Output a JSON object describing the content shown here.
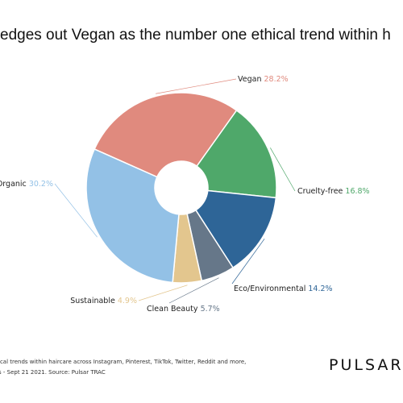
{
  "chart_data": {
    "type": "pie",
    "title": "edges out Vegan as the number one ethical trend within h",
    "donut": true,
    "slices": [
      {
        "label": "Vegan",
        "value": 28.2,
        "value_label": "28.2%",
        "color": "#E08A7E"
      },
      {
        "label": "Cruelty-free",
        "value": 16.8,
        "value_label": "16.8%",
        "color": "#4FA86A"
      },
      {
        "label": "Eco/Environmental",
        "value": 14.2,
        "value_label": "14.2%",
        "color": "#2E6597"
      },
      {
        "label": "Clean Beauty",
        "value": 5.7,
        "value_label": "5.7%",
        "color": "#667789"
      },
      {
        "label": "Sustainable",
        "value": 4.9,
        "value_label": "4.9%",
        "color": "#E3C68E"
      },
      {
        "label": "Organic",
        "value": 30.2,
        "value_label": "30.2%",
        "color": "#93C1E6"
      }
    ]
  },
  "footnote": {
    "line1": "ical trends within haircare across Instagram, Pinterest, TikTok, Twitter, Reddit and more,",
    "line2": "s - Sept 21 2021. Source: Pulsar TRAC"
  },
  "brand": "PULSAR"
}
